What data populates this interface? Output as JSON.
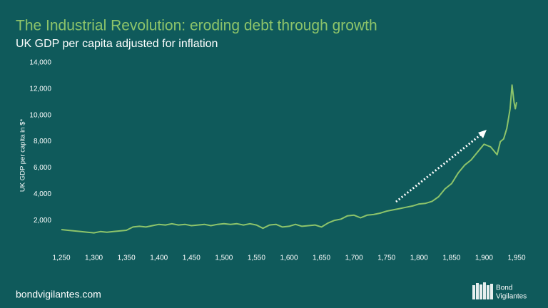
{
  "chart_data": {
    "type": "line",
    "title": "The Industrial Revolution: eroding debt through growth",
    "subtitle": "UK GDP per capita adjusted for inflation",
    "y_label": "UK GDP per capita in $*",
    "footer": "bondvigilantes.com",
    "logo": [
      "Bond",
      "Vigilantes"
    ],
    "x": [
      1250,
      1260,
      1270,
      1280,
      1290,
      1300,
      1310,
      1320,
      1330,
      1340,
      1350,
      1360,
      1370,
      1380,
      1390,
      1400,
      1410,
      1420,
      1430,
      1440,
      1450,
      1460,
      1470,
      1480,
      1490,
      1500,
      1510,
      1520,
      1530,
      1540,
      1550,
      1560,
      1570,
      1580,
      1590,
      1600,
      1610,
      1620,
      1630,
      1640,
      1650,
      1660,
      1670,
      1680,
      1690,
      1700,
      1710,
      1720,
      1730,
      1740,
      1750,
      1760,
      1770,
      1780,
      1790,
      1800,
      1810,
      1820,
      1830,
      1840,
      1850,
      1860,
      1870,
      1880,
      1890,
      1900,
      1910,
      1920,
      1925,
      1930,
      1935,
      1940,
      1943,
      1946,
      1948,
      1950
    ],
    "series": [
      {
        "name": "UK GDP per capita",
        "color": "#8dc46a",
        "values": [
          1300,
          1250,
          1200,
          1150,
          1100,
          1050,
          1150,
          1100,
          1150,
          1200,
          1250,
          1500,
          1550,
          1500,
          1600,
          1700,
          1650,
          1750,
          1650,
          1700,
          1600,
          1650,
          1700,
          1600,
          1700,
          1750,
          1700,
          1750,
          1650,
          1750,
          1650,
          1400,
          1650,
          1700,
          1500,
          1550,
          1700,
          1550,
          1600,
          1650,
          1500,
          1800,
          2000,
          2100,
          2350,
          2400,
          2200,
          2400,
          2450,
          2550,
          2700,
          2800,
          2900,
          3000,
          3100,
          3250,
          3300,
          3450,
          3800,
          4400,
          4800,
          5600,
          6200,
          6600,
          7200,
          7800,
          7600,
          7000,
          8000,
          8200,
          9000,
          10500,
          12300,
          11000,
          10500,
          11000
        ]
      }
    ],
    "xlim": [
      1250,
      1950
    ],
    "xticks": [
      {
        "value": 1250,
        "label": "1,250"
      },
      {
        "value": 1300,
        "label": "1,300"
      },
      {
        "value": 1350,
        "label": "1,350"
      },
      {
        "value": 1400,
        "label": "1,400"
      },
      {
        "value": 1450,
        "label": "1,450"
      },
      {
        "value": 1500,
        "label": "1,500"
      },
      {
        "value": 1550,
        "label": "1,550"
      },
      {
        "value": 1600,
        "label": "1,600"
      },
      {
        "value": 1650,
        "label": "1,650"
      },
      {
        "value": 1700,
        "label": "1,700"
      },
      {
        "value": 1750,
        "label": "1,750"
      },
      {
        "value": 1800,
        "label": "1,800"
      },
      {
        "value": 1850,
        "label": "1,850"
      },
      {
        "value": 1900,
        "label": "1,900"
      },
      {
        "value": 1950,
        "label": "1,950"
      }
    ],
    "ylim": [
      0,
      14000
    ],
    "yticks": [
      {
        "value": 2000,
        "label": "2,000"
      },
      {
        "value": 4000,
        "label": "4,000"
      },
      {
        "value": 6000,
        "label": "6,000"
      },
      {
        "value": 8000,
        "label": "8,000"
      },
      {
        "value": 10000,
        "label": "10,000"
      },
      {
        "value": 12000,
        "label": "12,000"
      },
      {
        "value": 14000,
        "label": "14,000"
      }
    ]
  }
}
